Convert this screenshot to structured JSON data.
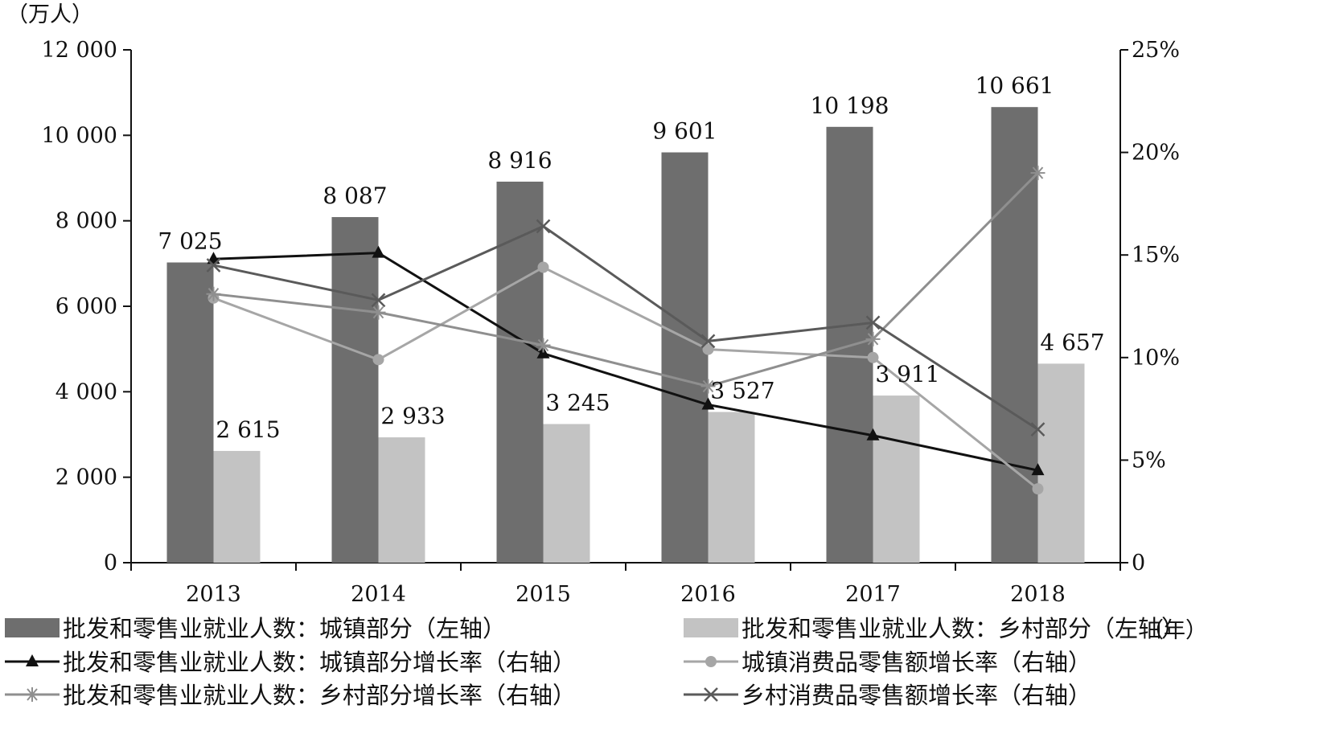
{
  "chart_data": {
    "type": "bar",
    "left_axis_unit": "（万人）",
    "x_unit": "（年）",
    "categories": [
      "2013",
      "2014",
      "2015",
      "2016",
      "2017",
      "2018"
    ],
    "y_left": {
      "min": 0,
      "max": 12000,
      "ticks": [
        "0",
        "2 000",
        "4 000",
        "6 000",
        "8 000",
        "10 000",
        "12 000"
      ]
    },
    "y_right": {
      "min": 0,
      "max": 25,
      "ticks": [
        "0",
        "5%",
        "10%",
        "15%",
        "20%",
        "25%"
      ]
    },
    "bar_series": [
      {
        "name": "批发和零售业就业人数：城镇部分（左轴）",
        "color": "#6e6e6e",
        "values": [
          7025,
          8087,
          8916,
          9601,
          10198,
          10661
        ],
        "labels": [
          "7 025",
          "8 087",
          "8 916",
          "9 601",
          "10 198",
          "10 661"
        ]
      },
      {
        "name": "批发和零售业就业人数：乡村部分（左轴）",
        "color": "#c3c3c3",
        "values": [
          2615,
          2933,
          3245,
          3527,
          3911,
          4657
        ],
        "labels": [
          "2 615",
          "2 933",
          "3 245",
          "3 527",
          "3 911",
          "4 657"
        ]
      }
    ],
    "line_series": [
      {
        "name": "批发和零售业就业人数：城镇部分增长率（右轴）",
        "color": "#111111",
        "marker": "triangle",
        "values": [
          14.8,
          15.1,
          10.2,
          7.7,
          6.2,
          4.5
        ]
      },
      {
        "name": "城镇消费品零售额增长率（右轴）",
        "color": "#a6a6a6",
        "marker": "circle",
        "values": [
          12.9,
          9.9,
          14.4,
          10.4,
          10.0,
          3.6
        ]
      },
      {
        "name": "批发和零售业就业人数：乡村部分增长率（右轴）",
        "color": "#8f8f8f",
        "marker": "star",
        "values": [
          13.1,
          12.2,
          10.6,
          8.6,
          10.9,
          19.0
        ]
      },
      {
        "name": "乡村消费品零售额增长率（右轴）",
        "color": "#5a5a5a",
        "marker": "x",
        "values": [
          14.5,
          12.8,
          16.4,
          10.8,
          11.7,
          6.5
        ]
      }
    ]
  }
}
